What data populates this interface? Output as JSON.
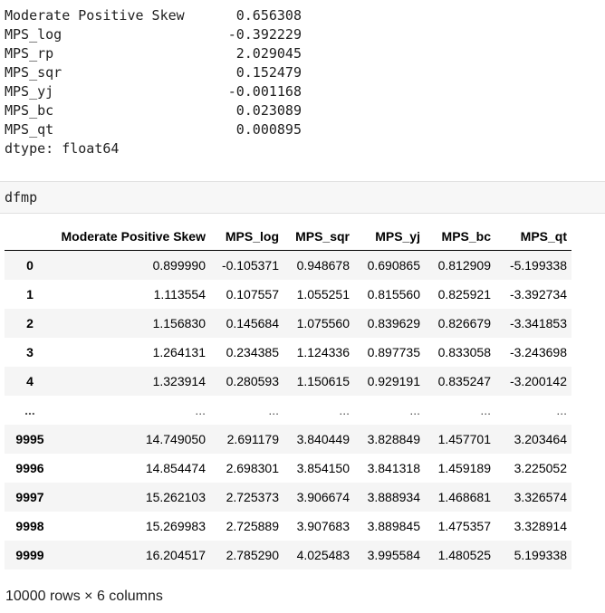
{
  "series_output": {
    "rows": [
      {
        "name": "Moderate Positive Skew",
        "value": "0.656308"
      },
      {
        "name": "MPS_log",
        "value": "-0.392229"
      },
      {
        "name": "MPS_rp",
        "value": "2.029045"
      },
      {
        "name": "MPS_sqr",
        "value": "0.152479"
      },
      {
        "name": "MPS_yj",
        "value": "-0.001168"
      },
      {
        "name": "MPS_bc",
        "value": "0.023089"
      },
      {
        "name": "MPS_qt",
        "value": "0.000895"
      }
    ],
    "dtype": "dtype: float64"
  },
  "code_cell": {
    "text": "dfmp"
  },
  "dataframe": {
    "columns": [
      "Moderate Positive Skew",
      "MPS_log",
      "MPS_sqr",
      "MPS_yj",
      "MPS_bc",
      "MPS_qt"
    ],
    "rows": [
      {
        "index": "0",
        "cells": [
          "0.899990",
          "-0.105371",
          "0.948678",
          "0.690865",
          "0.812909",
          "-5.199338"
        ]
      },
      {
        "index": "1",
        "cells": [
          "1.113554",
          "0.107557",
          "1.055251",
          "0.815560",
          "0.825921",
          "-3.392734"
        ]
      },
      {
        "index": "2",
        "cells": [
          "1.156830",
          "0.145684",
          "1.075560",
          "0.839629",
          "0.826679",
          "-3.341853"
        ]
      },
      {
        "index": "3",
        "cells": [
          "1.264131",
          "0.234385",
          "1.124336",
          "0.897735",
          "0.833058",
          "-3.243698"
        ]
      },
      {
        "index": "4",
        "cells": [
          "1.323914",
          "0.280593",
          "1.150615",
          "0.929191",
          "0.835247",
          "-3.200142"
        ]
      },
      {
        "index": "...",
        "cells": [
          "...",
          "...",
          "...",
          "...",
          "...",
          "..."
        ]
      },
      {
        "index": "9995",
        "cells": [
          "14.749050",
          "2.691179",
          "3.840449",
          "3.828849",
          "1.457701",
          "3.203464"
        ]
      },
      {
        "index": "9996",
        "cells": [
          "14.854474",
          "2.698301",
          "3.854150",
          "3.841318",
          "1.459189",
          "3.225052"
        ]
      },
      {
        "index": "9997",
        "cells": [
          "15.262103",
          "2.725373",
          "3.906674",
          "3.888934",
          "1.468681",
          "3.326574"
        ]
      },
      {
        "index": "9998",
        "cells": [
          "15.269983",
          "2.725889",
          "3.907683",
          "3.889845",
          "1.475357",
          "3.328914"
        ]
      },
      {
        "index": "9999",
        "cells": [
          "16.204517",
          "2.785290",
          "4.025483",
          "3.995584",
          "1.480525",
          "5.199338"
        ]
      }
    ],
    "shape": "10000 rows × 6 columns"
  }
}
